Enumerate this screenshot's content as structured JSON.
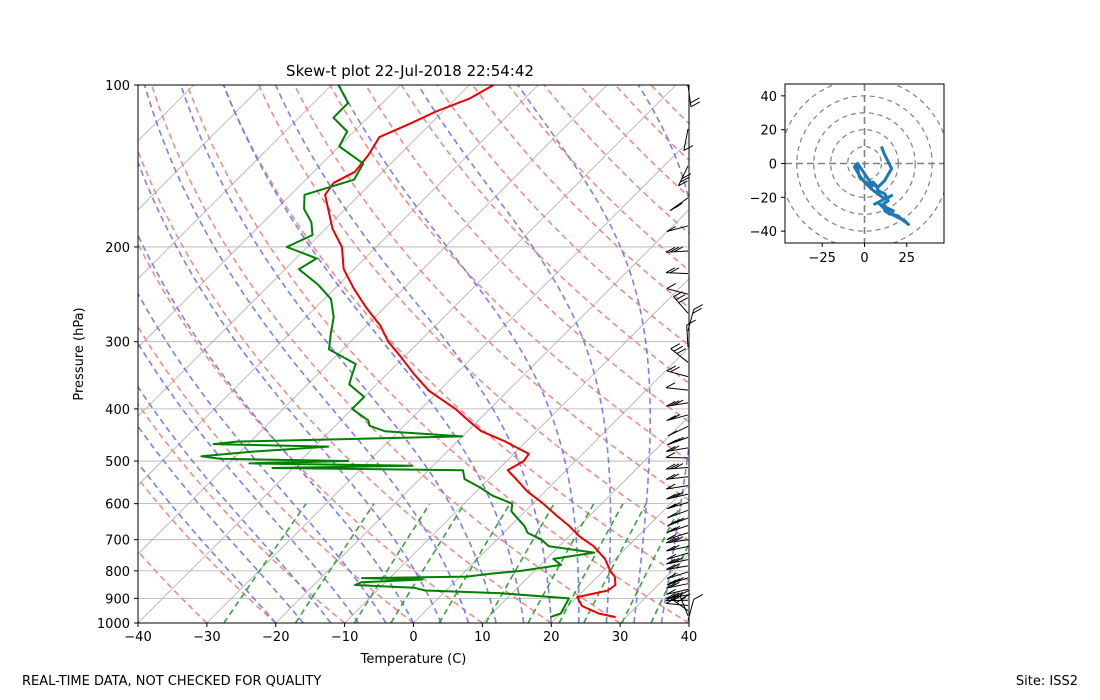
{
  "title": "Skew-t plot 22-Jul-2018 22:54:42",
  "footer": {
    "left": "REAL-TIME DATA, NOT CHECKED FOR QUALITY",
    "right": "Site: ISS2"
  },
  "colors": {
    "temperature": "#ee0000",
    "dewpoint": "#008000",
    "dry_adiabats": "#f08080",
    "moist_adiabats": "#7070f0",
    "mixing_ratio": "#2e9e2e",
    "isotherms": "#b0b0b0",
    "hodograph": "#1f77b4",
    "hodograph_rings": "#808080",
    "wind_barbs": "#000000"
  },
  "chart_data": [
    {
      "type": "line",
      "name": "skew-t",
      "title": "Skew-t plot 22-Jul-2018 22:54:42",
      "xlabel": "Temperature (C)",
      "ylabel": "Pressure (hPa)",
      "xlim": [
        -40,
        40
      ],
      "ylim": [
        1000,
        100
      ],
      "yscale": "log",
      "skew": 1.0,
      "xticks": [
        "−40",
        "−30",
        "−20",
        "−10",
        "0",
        "10",
        "20",
        "30",
        "40"
      ],
      "yticks": [
        "100",
        "200",
        "300",
        "400",
        "500",
        "600",
        "700",
        "800",
        "900",
        "1000"
      ],
      "grid": true,
      "series": [
        {
          "role": "temperature",
          "pressure": [
            975,
            960,
            930,
            895,
            870,
            850,
            820,
            800,
            760,
            720,
            690,
            660,
            630,
            600,
            570,
            540,
            520,
            500,
            485,
            460,
            440,
            420,
            400,
            370,
            345,
            320,
            300,
            280,
            260,
            240,
            220,
            200,
            185,
            170,
            160,
            152,
            145,
            135,
            125,
            118,
            112,
            106,
            100
          ],
          "values": [
            28.5,
            25.5,
            22.0,
            20.0,
            23.5,
            23.8,
            22.5,
            21.0,
            18.5,
            15.0,
            11.5,
            8.5,
            5.0,
            1.5,
            -2.5,
            -6.0,
            -8.5,
            -7.5,
            -7.8,
            -13.0,
            -18.0,
            -21.5,
            -25.0,
            -31.5,
            -36.0,
            -40.5,
            -44.5,
            -48.0,
            -52.5,
            -57.0,
            -61.5,
            -65.0,
            -69.0,
            -72.5,
            -75.0,
            -75.5,
            -74.0,
            -74.5,
            -75.5,
            -73.0,
            -71.0,
            -68.0,
            -66.5
          ]
        },
        {
          "role": "dewpoint",
          "pressure": [
            975,
            960,
            930,
            900,
            880,
            870,
            860,
            850,
            840,
            830,
            825,
            820,
            810,
            800,
            780,
            760,
            740,
            720,
            700,
            680,
            660,
            640,
            620,
            600,
            580,
            560,
            540,
            520,
            515,
            510,
            505,
            500,
            495,
            490,
            480,
            470,
            465,
            460,
            450,
            440,
            430,
            420,
            400,
            380,
            360,
            345,
            330,
            310,
            290,
            270,
            250,
            235,
            220,
            210,
            200,
            190,
            180,
            170,
            160,
            150,
            140,
            130,
            122,
            115,
            108,
            100
          ],
          "values": [
            19.0,
            20.0,
            19.5,
            19.0,
            8.0,
            -3.0,
            -5.0,
            -14.0,
            -13.5,
            -5.0,
            -14.0,
            1.0,
            4.0,
            8.0,
            13.0,
            11.0,
            16.0,
            8.5,
            6.5,
            3.5,
            2.0,
            0.0,
            -2.0,
            -3.0,
            -7.0,
            -10.0,
            -13.5,
            -15.0,
            -43.0,
            -23.0,
            -47.0,
            -33.0,
            -52.0,
            -55.0,
            -48.0,
            -38.0,
            -55.0,
            -52.0,
            -20.0,
            -32.0,
            -35.0,
            -36.0,
            -40.0,
            -40.0,
            -44.0,
            -45.0,
            -46.0,
            -52.0,
            -54.0,
            -56.0,
            -59.0,
            -63.0,
            -68.0,
            -67.0,
            -73.0,
            -71.0,
            -73.0,
            -76.0,
            -78.0,
            -73.0,
            -74.0,
            -80.0,
            -81.0,
            -85.0,
            -85.0,
            -89.0
          ]
        }
      ]
    },
    {
      "type": "line",
      "name": "hodograph",
      "xlim": [
        -47,
        47
      ],
      "ylim": [
        -47,
        47
      ],
      "xticks": [
        "−25",
        "0",
        "25"
      ],
      "yticks": [
        "40",
        "20",
        "0",
        "−20",
        "−40"
      ],
      "rings": [
        10,
        20,
        30,
        40,
        50
      ],
      "u": [
        -5,
        -4,
        -3,
        2,
        4,
        5,
        7,
        8,
        12,
        14,
        11,
        13,
        17,
        15,
        12,
        16,
        20,
        22,
        26,
        24,
        20,
        16,
        12,
        10,
        8,
        6,
        10,
        14,
        16,
        12,
        8,
        4,
        2,
        0,
        -3,
        -6,
        -4,
        -2,
        0,
        2,
        4,
        8,
        12,
        16,
        14,
        12,
        10
      ],
      "v": [
        0,
        -3,
        -8,
        -12,
        -14,
        -11,
        -13,
        -16,
        -18,
        -22,
        -24,
        -26,
        -28,
        -30,
        -28,
        -30,
        -31,
        -33,
        -36,
        -34,
        -32,
        -30,
        -27,
        -25,
        -23,
        -24,
        -22,
        -20,
        -19,
        -21,
        -18,
        -15,
        -13,
        -11,
        -7,
        -2,
        0,
        -3,
        -6,
        -9,
        -12,
        -14,
        -10,
        -3,
        1,
        5,
        10
      ]
    }
  ]
}
